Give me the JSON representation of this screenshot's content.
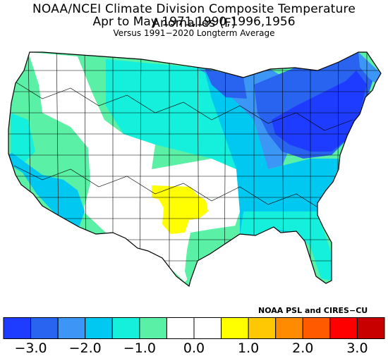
{
  "header": {
    "title": "NOAA/NCEI Climate Division Composite Temperature Anomalies (F)",
    "period": "Apr to May   1971,1990,1996,1956",
    "subtitle": "Versus 1991−2020 Longterm Average"
  },
  "credit": "NOAA PSL and CIRES−CU",
  "legend": {
    "bins": [
      {
        "color": "#1e3cff",
        "from": -3.5,
        "to": -3.0
      },
      {
        "color": "#2864f0",
        "from": -3.0,
        "to": -2.5
      },
      {
        "color": "#3c96f5",
        "from": -2.5,
        "to": -2.0
      },
      {
        "color": "#00c8f0",
        "from": -2.0,
        "to": -1.5
      },
      {
        "color": "#14f0dc",
        "from": -1.5,
        "to": -1.0
      },
      {
        "color": "#5af0a5",
        "from": -1.0,
        "to": -0.5
      },
      {
        "color": "#ffffff",
        "from": -0.5,
        "to": 0.0
      },
      {
        "color": "#ffffff",
        "from": 0.0,
        "to": 0.5
      },
      {
        "color": "#ffff00",
        "from": 0.5,
        "to": 1.0
      },
      {
        "color": "#ffc800",
        "from": 1.0,
        "to": 1.5
      },
      {
        "color": "#ff8c00",
        "from": 1.5,
        "to": 2.0
      },
      {
        "color": "#ff5a00",
        "from": 2.0,
        "to": 2.5
      },
      {
        "color": "#ff0000",
        "from": 2.5,
        "to": 3.0
      },
      {
        "color": "#c80000",
        "from": 3.0,
        "to": 3.5
      }
    ],
    "ticks": [
      {
        "value": -3.0,
        "label": "−3.0"
      },
      {
        "value": -2.0,
        "label": "−2.0"
      },
      {
        "value": -1.0,
        "label": "−1.0"
      },
      {
        "value": 0.0,
        "label": "0.0"
      },
      {
        "value": 1.0,
        "label": "1.0"
      },
      {
        "value": 2.0,
        "label": "2.0"
      },
      {
        "value": 3.0,
        "label": "3.0"
      }
    ]
  },
  "map": {
    "region": "Contiguous United States climate divisions",
    "regions": [
      {
        "name": "pacific-northwest-coast",
        "anomaly_bin": -1.0,
        "color": "#5af0a5"
      },
      {
        "name": "california-coast",
        "anomaly_bin": -1.5,
        "color": "#14f0dc"
      },
      {
        "name": "southern-california",
        "anomaly_bin": -2.0,
        "color": "#00c8f0"
      },
      {
        "name": "great-basin-rockies",
        "anomaly_bin": 0.0,
        "color": "#ffffff"
      },
      {
        "name": "northern-plains",
        "anomaly_bin": -1.5,
        "color": "#14f0dc"
      },
      {
        "name": "upper-midwest",
        "anomaly_bin": -2.5,
        "color": "#2864f0"
      },
      {
        "name": "great-lakes-northeast",
        "anomaly_bin": -3.0,
        "color": "#1e3cff"
      },
      {
        "name": "southeast",
        "anomaly_bin": -1.5,
        "color": "#14f0dc"
      },
      {
        "name": "southern-plains",
        "anomaly_bin": 0.0,
        "color": "#ffffff"
      },
      {
        "name": "oklahoma-texas-north",
        "anomaly_bin": 0.5,
        "color": "#ffff00"
      }
    ]
  }
}
